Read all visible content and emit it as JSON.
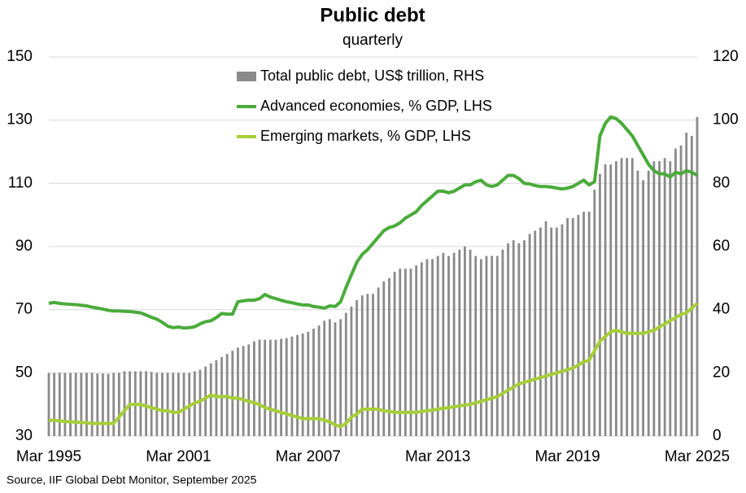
{
  "chart_data": {
    "type": "combo",
    "title": "Public debt",
    "subtitle": "quarterly",
    "source": "Source, IIF Global Debt Monitor, September 2025",
    "categories": [
      "Mar 1995",
      null,
      null,
      null,
      null,
      null,
      null,
      null,
      null,
      null,
      null,
      null,
      null,
      null,
      null,
      null,
      null,
      null,
      null,
      null,
      null,
      null,
      null,
      null,
      "Mar 2001",
      null,
      null,
      null,
      null,
      null,
      null,
      null,
      null,
      null,
      null,
      null,
      null,
      null,
      null,
      null,
      null,
      null,
      null,
      null,
      null,
      null,
      null,
      null,
      "Mar 2007",
      null,
      null,
      null,
      null,
      null,
      null,
      null,
      null,
      null,
      null,
      null,
      null,
      null,
      null,
      null,
      null,
      null,
      null,
      null,
      null,
      null,
      null,
      null,
      "Mar 2013",
      null,
      null,
      null,
      null,
      null,
      null,
      null,
      null,
      null,
      null,
      null,
      null,
      null,
      null,
      null,
      null,
      null,
      null,
      null,
      null,
      null,
      null,
      null,
      "Mar 2019",
      null,
      null,
      null,
      null,
      null,
      null,
      null,
      null,
      null,
      null,
      null,
      null,
      null,
      null,
      null,
      null,
      null,
      null,
      null,
      null,
      null,
      null,
      null,
      "Mar 2025"
    ],
    "series": [
      {
        "name": "Total public debt, US$ trillion, RHS",
        "type": "bar",
        "axis": "y2",
        "color": "#8a8a8a",
        "values": [
          20,
          20,
          20,
          20,
          20,
          20,
          20,
          20,
          20,
          19.8,
          19.8,
          19.7,
          20,
          20,
          20.5,
          20.5,
          20.5,
          20.5,
          20.5,
          20.3,
          20,
          20,
          20,
          20,
          20,
          20,
          20,
          20.5,
          21,
          22,
          23,
          24,
          25,
          26,
          27,
          28,
          28.5,
          29,
          30,
          30.5,
          30.5,
          30.5,
          30.5,
          30.8,
          31,
          31.5,
          32,
          32.5,
          33,
          34,
          35,
          36.5,
          37,
          36,
          37,
          39,
          41,
          43,
          44.5,
          45,
          45,
          47,
          49,
          50,
          52,
          53,
          53,
          53,
          54,
          55,
          56,
          56,
          57,
          58,
          57,
          58,
          59,
          60,
          59,
          57,
          56,
          57,
          57,
          57,
          59,
          61,
          62,
          61,
          62,
          64,
          65,
          66,
          68,
          66,
          66,
          67,
          69,
          69,
          70,
          71,
          71,
          78,
          83,
          86,
          86,
          87,
          88,
          88,
          88,
          84,
          81,
          84,
          87,
          87,
          88,
          87,
          91,
          92,
          96,
          95,
          101
        ]
      },
      {
        "name": "Advanced economies, % GDP, LHS",
        "type": "line",
        "color": "#4aab3a",
        "values": [
          72,
          72.3,
          72,
          71.8,
          71.7,
          71.6,
          71.4,
          71.2,
          70.8,
          70.5,
          70.2,
          69.8,
          69.6,
          69.6,
          69.5,
          69.4,
          69.2,
          69,
          68.3,
          67.6,
          67,
          66,
          64.8,
          64.3,
          64.5,
          64.2,
          64.3,
          64.6,
          65.5,
          66.2,
          66.5,
          67.5,
          68.8,
          68.6,
          68.6,
          72.5,
          72.8,
          73,
          73,
          73.5,
          74.8,
          74,
          73.5,
          73,
          72.5,
          72.2,
          71.8,
          71.5,
          71.5,
          71,
          70.8,
          70.5,
          71.2,
          71,
          72.5,
          77,
          81,
          85,
          87.5,
          89,
          91,
          93,
          95,
          96,
          96.5,
          97.5,
          99,
          100,
          101,
          103,
          104.5,
          106,
          107.5,
          107.5,
          107,
          107.5,
          108.5,
          109.5,
          109.5,
          110.5,
          111,
          109.5,
          109,
          109.5,
          111,
          112.5,
          112.5,
          111.5,
          110,
          109.8,
          109.3,
          109,
          109,
          108.8,
          108.5,
          108.2,
          108.5,
          109,
          110,
          111,
          109.5,
          110.5,
          125,
          129,
          131,
          130.5,
          129,
          127,
          125,
          122,
          119,
          116,
          114,
          113,
          113,
          112,
          113.5,
          113,
          114,
          113.5,
          112.5
        ]
      },
      {
        "name": "Emerging markets, % GDP, LHS",
        "type": "line",
        "color": "#a6cf38",
        "values": [
          35,
          35,
          34.8,
          34.6,
          34.5,
          34.4,
          34.3,
          34.2,
          34,
          34,
          34,
          34,
          34,
          36,
          38,
          40,
          40,
          40,
          39.5,
          39,
          38.5,
          38,
          38,
          37.5,
          37.5,
          38.5,
          39.5,
          40.5,
          41,
          42,
          43,
          42.5,
          42.5,
          42.5,
          42,
          42,
          41.5,
          41,
          40.5,
          40,
          39,
          38.5,
          38,
          37.5,
          37,
          36.5,
          36,
          35.5,
          35.5,
          35.5,
          35.5,
          35,
          34.5,
          33.5,
          33,
          34,
          36,
          37,
          38.5,
          38.5,
          38.5,
          38.5,
          38,
          37.8,
          37.5,
          37.5,
          37.5,
          37.5,
          37.5,
          37.8,
          38,
          38.2,
          38.5,
          38.8,
          39,
          39.3,
          39.5,
          39.8,
          40,
          40.5,
          41,
          41.5,
          42,
          42.5,
          43.5,
          44.5,
          45.5,
          46.5,
          47,
          47.5,
          48,
          48.5,
          49,
          49.5,
          50,
          50.5,
          51,
          51.5,
          52.5,
          53.5,
          54,
          57,
          60,
          61.5,
          63,
          63.5,
          63,
          62.5,
          62.5,
          62.5,
          62.5,
          63,
          63.5,
          64.5,
          65.5,
          66.5,
          67.5,
          68.5,
          69,
          70.5,
          72
        ]
      }
    ],
    "ylim": [
      30,
      150
    ],
    "yticks": [
      30,
      50,
      70,
      90,
      110,
      130,
      150
    ],
    "y2lim": [
      0,
      120
    ],
    "y2ticks": [
      0,
      20,
      40,
      60,
      80,
      100,
      120
    ],
    "grid": true
  }
}
